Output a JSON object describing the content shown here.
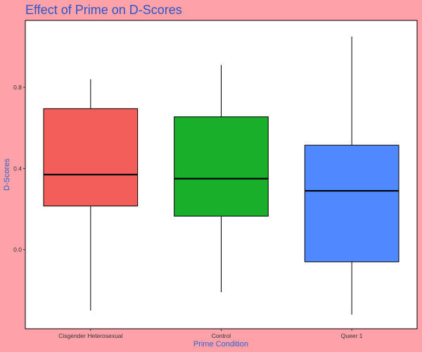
{
  "chart_data": {
    "type": "boxplot",
    "title": "Effect of Prime on D-Scores",
    "xlabel": "Prime Condition",
    "ylabel": "D-Scores",
    "categories": [
      "Cisgender Heterosexual",
      "Control",
      "Queer 1"
    ],
    "boxes": [
      {
        "category": "Cisgender Heterosexual",
        "min": -0.3,
        "q1": 0.215,
        "median": 0.37,
        "q3": 0.695,
        "max": 0.84,
        "color": "#f35e5a"
      },
      {
        "category": "Control",
        "min": -0.21,
        "q1": 0.165,
        "median": 0.35,
        "q3": 0.655,
        "max": 0.91,
        "color": "#1aaf2b"
      },
      {
        "category": "Queer 1",
        "min": -0.32,
        "q1": -0.06,
        "median": 0.29,
        "q3": 0.515,
        "max": 1.05,
        "color": "#4f88ff"
      }
    ],
    "yticks": [
      0.0,
      0.4,
      0.8
    ],
    "ytick_labels": [
      "0.0",
      "0.4",
      "0.8"
    ],
    "ylim": [
      -0.39,
      1.13
    ],
    "grid": false,
    "legend": "none"
  },
  "colors": {
    "background": "#ffa1a9",
    "panel": "#ffffff",
    "title": "#2f55c8",
    "axis_title": "#3a5fc8"
  }
}
